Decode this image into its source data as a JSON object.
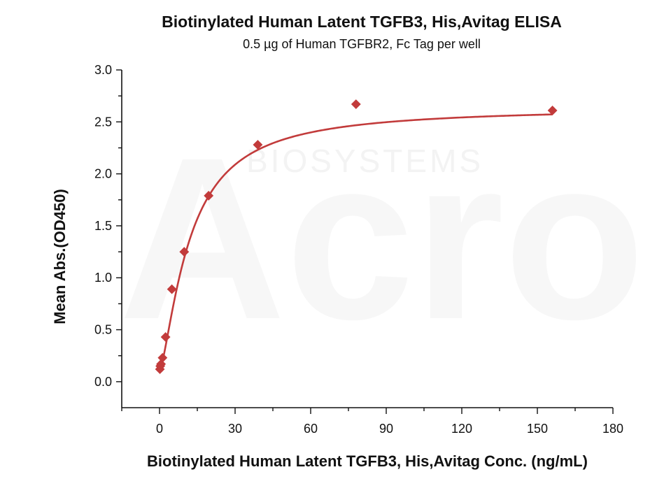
{
  "colors": {
    "series": "#c23b3b",
    "axis": "#111111",
    "watermark": "#f1f1f1"
  },
  "watermark": {
    "logo": "Acro",
    "tagline": "BIOSYSTEMS"
  },
  "chart_data": {
    "type": "scatter",
    "title": "Biotinylated Human Latent  TGFB3, His,Avitag ELISA",
    "subtitle": "0.5 µg of Human TGFBR2, Fc Tag per well",
    "xlabel": "Biotinylated Human Latent  TGFB3, His,Avitag Conc. (ng/mL)",
    "ylabel": "Mean Abs.(OD450)",
    "xlim": [
      -15,
      180
    ],
    "ylim": [
      -0.25,
      3.0
    ],
    "x_ticks": [
      0,
      30,
      60,
      90,
      120,
      150,
      180
    ],
    "y_ticks": [
      0.0,
      0.5,
      1.0,
      1.5,
      2.0,
      2.5,
      3.0
    ],
    "x_tick_labels": [
      "0",
      "30",
      "60",
      "90",
      "120",
      "150",
      "180"
    ],
    "y_tick_labels": [
      "0.0",
      "0.5",
      "1.0",
      "1.5",
      "2.0",
      "2.5",
      "3.0"
    ],
    "grid": false,
    "legend": "none",
    "marker": "diamond",
    "series": [
      {
        "x": [
          0.15,
          0.3,
          0.6,
          1.2,
          2.4,
          4.9,
          9.8,
          19.5,
          39,
          78,
          156
        ],
        "y": [
          0.12,
          0.15,
          0.17,
          0.23,
          0.43,
          0.89,
          1.25,
          1.79,
          2.28,
          2.67,
          2.61
        ]
      }
    ],
    "fit_curve": {
      "model": "4PL",
      "bottom": 0.1,
      "top": 2.64,
      "ec50": 12,
      "hill": 1.4
    }
  }
}
